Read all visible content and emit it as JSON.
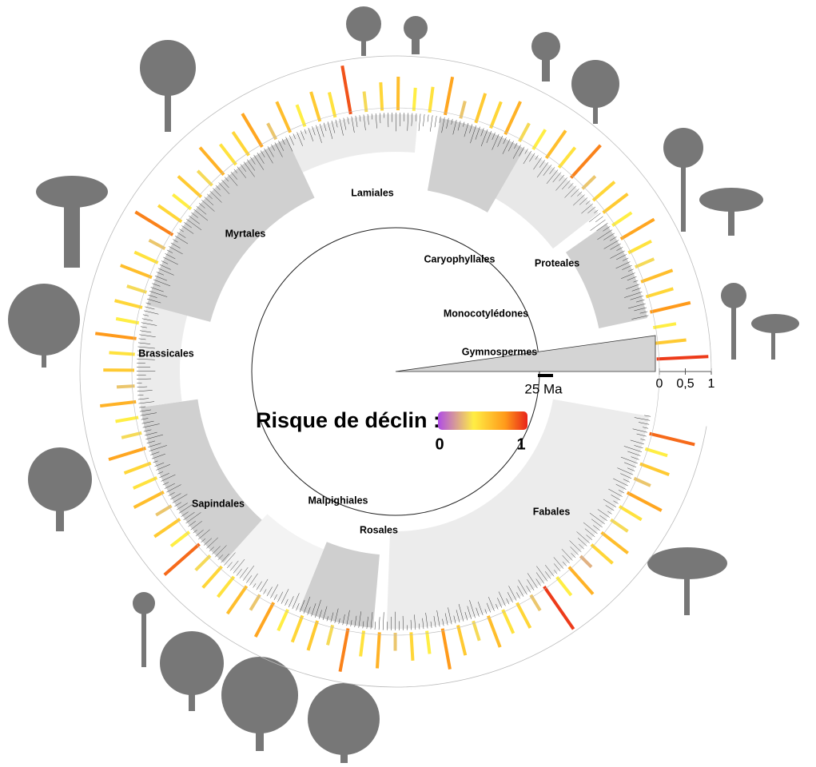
{
  "legend": {
    "title": "Risque de déclin :",
    "min": 0,
    "max": 1
  },
  "scale_bar": "25 Ma",
  "axis_ticks": [
    {
      "value": 0,
      "label": "0"
    },
    {
      "value": 0.5,
      "label": "0,5"
    },
    {
      "value": 1,
      "label": "1"
    }
  ],
  "clades": [
    "Gymnospermes",
    "Monocotylédones",
    "Caryophyllales",
    "Proteales",
    "Lamiales",
    "Myrtales",
    "Brassicales",
    "Sapindales",
    "Malpighiales",
    "Rosales",
    "Fabales"
  ],
  "decline_risk": [
    0.85,
    0.4,
    0.55,
    0.3,
    0.7,
    0.45,
    0.35,
    0.6,
    0.5,
    0.25,
    0.65,
    0.4,
    0.95,
    0.3,
    0.5,
    0.45,
    0.6,
    0.35,
    0.55,
    0.75,
    0.4,
    0.5,
    0.3,
    0.65,
    0.45,
    0.8,
    0.35,
    0.55,
    0.5,
    0.4,
    0.7,
    0.3,
    0.6,
    0.45,
    0.5,
    0.35,
    0.85,
    0.4,
    0.55,
    0.3,
    0.6,
    0.45,
    0.5,
    0.7,
    0.35,
    0.4,
    0.65,
    0.3,
    0.55,
    0.45,
    0.75,
    0.4,
    0.5,
    0.35,
    0.6,
    0.45,
    0.3,
    0.8,
    0.5,
    0.4,
    0.55,
    0.35,
    0.65,
    0.45,
    0.5,
    0.7,
    0.3,
    0.6,
    0.4,
    0.55,
    0.45,
    0.9,
    0.35,
    0.5,
    0.6,
    0.4,
    0.45,
    0.7,
    0.3,
    0.55,
    0.5,
    0.65,
    0.35,
    0.4,
    0.6,
    0.45,
    0.8,
    0.3,
    0.5,
    0.55,
    0.4,
    0.7,
    0.45,
    0.35,
    0.6,
    0.5,
    0.75,
    0.4,
    0.55,
    0.95
  ]
}
